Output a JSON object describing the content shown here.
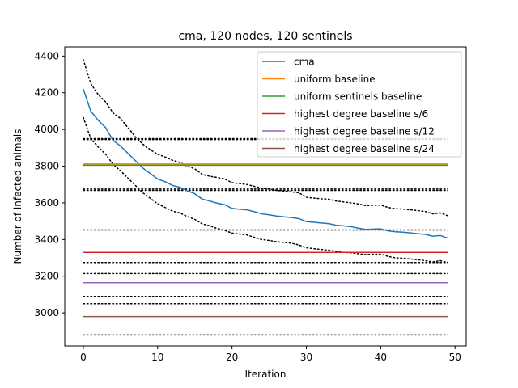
{
  "chart_data": {
    "type": "line",
    "title": "cma, 120 nodes, 120 sentinels",
    "xlabel": "Iteration",
    "ylabel": "Number of infected animals",
    "xlim": [
      -2.5,
      51.5
    ],
    "ylim": [
      2820,
      4450
    ],
    "xticks": [
      0,
      10,
      20,
      30,
      40,
      50
    ],
    "yticks": [
      3000,
      3200,
      3400,
      3600,
      3800,
      4000,
      4200,
      4400
    ],
    "grid": false,
    "legend_position": "top-right",
    "series": [
      {
        "name": "cma",
        "color": "#1f77b4",
        "style": "solid",
        "x": [
          0,
          1,
          2,
          3,
          4,
          5,
          6,
          7,
          8,
          9,
          10,
          11,
          12,
          13,
          14,
          15,
          16,
          17,
          18,
          19,
          20,
          21,
          22,
          23,
          24,
          25,
          26,
          27,
          28,
          29,
          30,
          31,
          32,
          33,
          34,
          35,
          36,
          37,
          38,
          39,
          40,
          41,
          42,
          43,
          44,
          45,
          46,
          47,
          48,
          49
        ],
        "y": [
          4220,
          4100,
          4050,
          4010,
          3940,
          3910,
          3870,
          3830,
          3790,
          3760,
          3730,
          3715,
          3695,
          3685,
          3665,
          3650,
          3620,
          3610,
          3598,
          3590,
          3570,
          3565,
          3562,
          3552,
          3540,
          3535,
          3528,
          3524,
          3520,
          3514,
          3498,
          3494,
          3490,
          3487,
          3478,
          3475,
          3470,
          3462,
          3455,
          3457,
          3458,
          3447,
          3442,
          3440,
          3436,
          3432,
          3428,
          3418,
          3422,
          3408
        ]
      },
      {
        "name": "uniform baseline",
        "color": "#ff7f0e",
        "style": "solid",
        "x": [
          0,
          49
        ],
        "y": [
          3812,
          3812
        ]
      },
      {
        "name": "uniform sentinels baseline",
        "color": "#2ca02c",
        "style": "solid",
        "x": [
          0,
          49
        ],
        "y": [
          3805,
          3805
        ]
      },
      {
        "name": "highest degree baseline s/6",
        "color": "#d62728",
        "style": "solid",
        "x": [
          0,
          49
        ],
        "y": [
          3330,
          3330
        ]
      },
      {
        "name": "highest degree baseline s/12",
        "color": "#9467bd",
        "style": "solid",
        "x": [
          0,
          49
        ],
        "y": [
          3165,
          3165
        ]
      },
      {
        "name": "highest degree baseline s/24",
        "color": "#8c564b",
        "style": "solid",
        "x": [
          0,
          49
        ],
        "y": [
          2980,
          2980
        ]
      }
    ],
    "bands": [
      {
        "color": "#000000",
        "style": "dotted",
        "x": [
          0,
          1,
          2,
          3,
          4,
          5,
          6,
          7,
          8,
          9,
          10,
          11,
          12,
          13,
          14,
          15,
          16,
          17,
          18,
          19,
          20,
          21,
          22,
          23,
          24,
          25,
          26,
          27,
          28,
          29,
          30,
          31,
          32,
          33,
          34,
          35,
          36,
          37,
          38,
          39,
          40,
          41,
          42,
          43,
          44,
          45,
          46,
          47,
          48,
          49
        ],
        "y": [
          4380,
          4250,
          4190,
          4150,
          4090,
          4060,
          4010,
          3960,
          3920,
          3890,
          3865,
          3850,
          3832,
          3820,
          3800,
          3785,
          3755,
          3745,
          3738,
          3730,
          3710,
          3705,
          3700,
          3690,
          3680,
          3675,
          3668,
          3664,
          3660,
          3655,
          3630,
          3626,
          3622,
          3620,
          3610,
          3605,
          3600,
          3594,
          3585,
          3587,
          3588,
          3575,
          3568,
          3566,
          3562,
          3558,
          3553,
          3540,
          3545,
          3530
        ]
      },
      {
        "color": "#000000",
        "style": "dotted",
        "x": [
          0,
          1,
          2,
          3,
          4,
          5,
          6,
          7,
          8,
          9,
          10,
          11,
          12,
          13,
          14,
          15,
          16,
          17,
          18,
          19,
          20,
          21,
          22,
          23,
          24,
          25,
          26,
          27,
          28,
          29,
          30,
          31,
          32,
          33,
          34,
          35,
          36,
          37,
          38,
          39,
          40,
          41,
          42,
          43,
          44,
          45,
          46,
          47,
          48,
          49
        ],
        "y": [
          4065,
          3950,
          3905,
          3865,
          3810,
          3775,
          3735,
          3695,
          3655,
          3625,
          3595,
          3575,
          3555,
          3545,
          3525,
          3510,
          3485,
          3475,
          3460,
          3450,
          3435,
          3430,
          3425,
          3412,
          3400,
          3395,
          3388,
          3384,
          3380,
          3370,
          3355,
          3350,
          3346,
          3342,
          3335,
          3330,
          3328,
          3322,
          3318,
          3320,
          3320,
          3308,
          3300,
          3298,
          3294,
          3290,
          3285,
          3278,
          3285,
          3275
        ]
      },
      {
        "color": "#000000",
        "style": "dotted",
        "x": [
          0,
          49
        ],
        "y": [
          3950,
          3950
        ]
      },
      {
        "color": "#000000",
        "style": "dotted",
        "x": [
          0,
          49
        ],
        "y": [
          3945,
          3945
        ]
      },
      {
        "color": "#000000",
        "style": "dotted",
        "x": [
          0,
          49
        ],
        "y": [
          3675,
          3675
        ]
      },
      {
        "color": "#000000",
        "style": "dotted",
        "x": [
          0,
          49
        ],
        "y": [
          3668,
          3668
        ]
      },
      {
        "color": "#000000",
        "style": "dotted",
        "x": [
          0,
          49
        ],
        "y": [
          3452,
          3452
        ]
      },
      {
        "color": "#000000",
        "style": "dotted",
        "x": [
          0,
          49
        ],
        "y": [
          3275,
          3275
        ]
      },
      {
        "color": "#000000",
        "style": "dotted",
        "x": [
          0,
          49
        ],
        "y": [
          3215,
          3215
        ]
      },
      {
        "color": "#000000",
        "style": "dotted",
        "x": [
          0,
          49
        ],
        "y": [
          3090,
          3090
        ]
      },
      {
        "color": "#000000",
        "style": "dotted",
        "x": [
          0,
          49
        ],
        "y": [
          3050,
          3050
        ]
      },
      {
        "color": "#000000",
        "style": "dotted",
        "x": [
          0,
          49
        ],
        "y": [
          2880,
          2880
        ]
      }
    ]
  }
}
